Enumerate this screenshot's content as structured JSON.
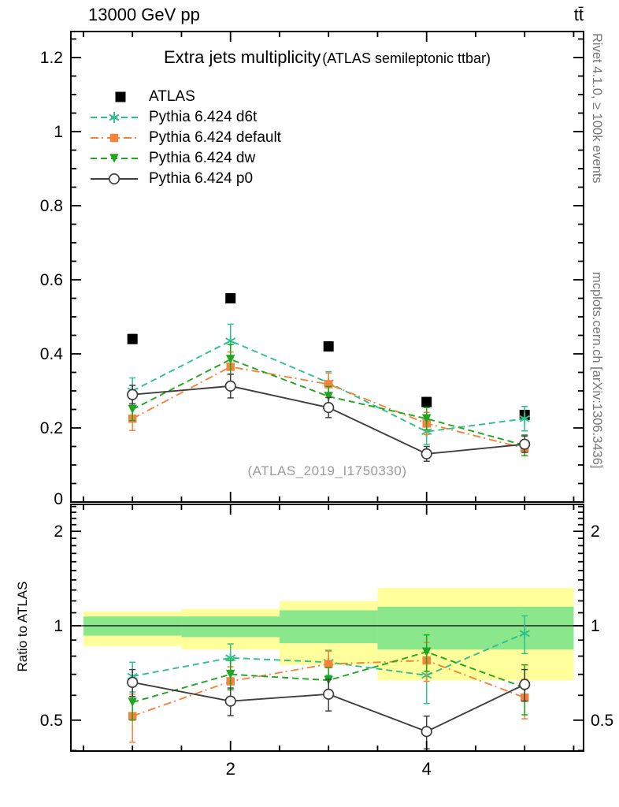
{
  "header": {
    "left_title": "13000 GeV pp",
    "right_title": "tt̄"
  },
  "main_panel": {
    "title": "Extra jets multiplicity",
    "subtitle": "(ATLAS semileptonic ttbar)",
    "watermark": "(ATLAS_2019_I1750330)"
  },
  "ratio_panel": {
    "ylabel": "Ratio to ATLAS"
  },
  "side_captions": {
    "rivet": "Rivet 4.1.0, ≥ 100k events",
    "mcplots": "mcplots.cern.ch [arXiv:1306.3436]"
  },
  "legend": {
    "items": [
      {
        "label": "ATLAS",
        "marker": "square-filled",
        "line": "none",
        "color": "#000000"
      },
      {
        "label": "Pythia 6.424 d6t",
        "marker": "asterisk",
        "line": "dashed",
        "color": "#2ec08c"
      },
      {
        "label": "Pythia 6.424 default",
        "marker": "square-filled",
        "line": "dashdot",
        "color": "#f6833b"
      },
      {
        "label": "Pythia 6.424 dw",
        "marker": "triangle-down-filled",
        "line": "dashed",
        "color": "#1ea71e"
      },
      {
        "label": "Pythia 6.424 p0",
        "marker": "circle-open",
        "line": "solid",
        "color": "#3f3f3f"
      }
    ]
  },
  "colors": {
    "band_yellow": "#ffff9c",
    "band_green": "#8be78b"
  },
  "chart_data": {
    "type": "line",
    "title": "Extra jets multiplicity (ATLAS semileptonic ttbar)",
    "xlabel": "",
    "ylabel": "",
    "x": [
      1,
      2,
      3,
      4,
      5
    ],
    "xlim": [
      0.37,
      5.61
    ],
    "xtick_labels": [
      "2",
      "4"
    ],
    "main": {
      "ylim": [
        0,
        1.27
      ],
      "ytick_labels": [
        "0",
        "0.2",
        "0.4",
        "0.6",
        "0.8",
        "1",
        "1.2"
      ],
      "series": [
        {
          "name": "ATLAS",
          "marker": "square-filled",
          "line": "none",
          "color": "#000000",
          "values": [
            0.44,
            0.55,
            0.42,
            0.27,
            0.235
          ],
          "errors": [
            0.012,
            0.012,
            0.012,
            0.012,
            0.012
          ]
        },
        {
          "name": "Pythia 6.424 d6t",
          "marker": "asterisk",
          "line": "dashed",
          "color": "#2ec08c",
          "values": [
            0.3,
            0.435,
            0.322,
            0.19,
            0.225
          ],
          "errors": [
            0.035,
            0.045,
            0.03,
            0.035,
            0.033
          ]
        },
        {
          "name": "Pythia 6.424 default",
          "marker": "square-filled",
          "line": "dashdot",
          "color": "#f6833b",
          "values": [
            0.225,
            0.365,
            0.318,
            0.212,
            0.145
          ],
          "errors": [
            0.032,
            0.04,
            0.03,
            0.03,
            0.02
          ]
        },
        {
          "name": "Pythia 6.424 dw",
          "marker": "triangle-down-filled",
          "line": "dashed",
          "color": "#1ea71e",
          "values": [
            0.25,
            0.385,
            0.285,
            0.225,
            0.153
          ],
          "errors": [
            0.03,
            0.04,
            0.027,
            0.03,
            0.028
          ]
        },
        {
          "name": "Pythia 6.424 p0",
          "marker": "circle-open",
          "line": "solid",
          "color": "#3f3f3f",
          "values": [
            0.29,
            0.313,
            0.255,
            0.13,
            0.156
          ],
          "errors": [
            0.025,
            0.032,
            0.027,
            0.02,
            0.022
          ]
        }
      ]
    },
    "ratio": {
      "scale": "log",
      "ylim": [
        0.4,
        2.44
      ],
      "ytick_labels": [
        "2",
        "1",
        "0.5"
      ],
      "bands": [
        {
          "x0": 0.5,
          "x1": 1.5,
          "yellow": [
            0.86,
            1.11
          ],
          "green": [
            0.93,
            1.07
          ]
        },
        {
          "x0": 1.5,
          "x1": 2.5,
          "yellow": [
            0.84,
            1.13
          ],
          "green": [
            0.92,
            1.07
          ]
        },
        {
          "x0": 2.5,
          "x1": 3.5,
          "yellow": [
            0.75,
            1.2
          ],
          "green": [
            0.88,
            1.12
          ]
        },
        {
          "x0": 3.5,
          "x1": 5.5,
          "yellow": [
            0.67,
            1.32
          ],
          "green": [
            0.84,
            1.15
          ]
        }
      ],
      "series": [
        {
          "name": "Pythia 6.424 d6t",
          "values": [
            0.69,
            0.79,
            0.765,
            0.695,
            0.945
          ],
          "errors": [
            0.075,
            0.085,
            0.07,
            0.13,
            0.13
          ]
        },
        {
          "name": "Pythia 6.424 default",
          "values": [
            0.515,
            0.665,
            0.755,
            0.775,
            0.59
          ],
          "errors": [
            0.09,
            0.075,
            0.075,
            0.11,
            0.085
          ]
        },
        {
          "name": "Pythia 6.424 dw",
          "values": [
            0.57,
            0.7,
            0.67,
            0.825,
            0.635
          ],
          "errors": [
            0.07,
            0.075,
            0.065,
            0.11,
            0.115
          ]
        },
        {
          "name": "Pythia 6.424 p0",
          "values": [
            0.66,
            0.575,
            0.605,
            0.46,
            0.65
          ],
          "errors": [
            0.065,
            0.058,
            0.07,
            0.055,
            0.075
          ]
        }
      ]
    }
  }
}
